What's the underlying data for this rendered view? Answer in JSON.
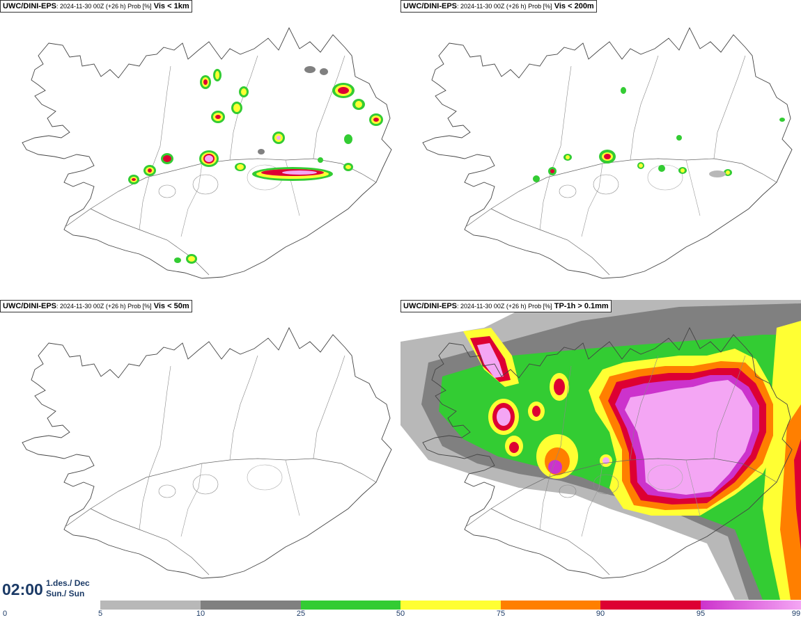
{
  "panels": [
    {
      "prod": "UWC/DINI-EPS",
      "meta": ": 2024-11-30 00Z (+26 h) Prob [%]",
      "var": "Vis < 1km"
    },
    {
      "prod": "UWC/DINI-EPS",
      "meta": ": 2024-11-30 00Z (+26 h) Prob [%]",
      "var": "Vis < 200m"
    },
    {
      "prod": "UWC/DINI-EPS",
      "meta": ": 2024-11-30 00Z (+26 h) Prob [%]",
      "var": "Vis < 50m"
    },
    {
      "prod": "UWC/DINI-EPS",
      "meta": ": 2024-11-30 00Z (+26 h) Prob [%]",
      "var": "TP-1h > 0.1mm"
    }
  ],
  "valid": {
    "time": "02:00",
    "date": "1.des./ Dec",
    "day": "Sun./ Sun"
  },
  "colorbar": {
    "ticks": [
      "0",
      "5",
      "10",
      "25",
      "50",
      "75",
      "90",
      "95",
      "99"
    ],
    "colors": [
      "#b8b8b8",
      "#808080",
      "#33cc33",
      "#ffff33",
      "#ff7f00",
      "#dd0033",
      "#cc33cc",
      "#f4a6f4"
    ]
  }
}
